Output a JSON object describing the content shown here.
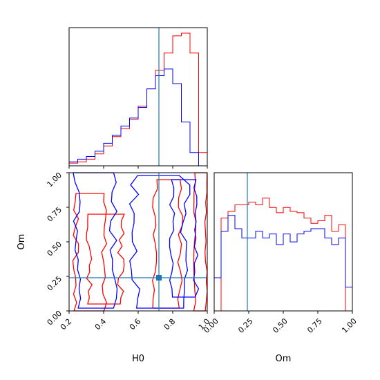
{
  "chart_data": [
    {
      "type": "histogram",
      "panel": "H0 marginal",
      "x_range": [
        0.2,
        1.0
      ],
      "y_ticks_shown": false,
      "truth_value": 0.72,
      "colors": {
        "series_a": "#ff0000",
        "series_b": "#0000ff",
        "truth": "#1f77b4"
      },
      "bin_edges": [
        0.2,
        0.25,
        0.3,
        0.35,
        0.4,
        0.45,
        0.5,
        0.55,
        0.6,
        0.65,
        0.7,
        0.75,
        0.8,
        0.85,
        0.9,
        0.95,
        1.0
      ],
      "series": [
        {
          "color": "#ff0000",
          "values": [
            0.02,
            0.03,
            0.05,
            0.09,
            0.15,
            0.22,
            0.28,
            0.35,
            0.45,
            0.58,
            0.72,
            0.85,
            0.98,
            1.0,
            0.85,
            0.1
          ]
        },
        {
          "color": "#0000ff",
          "values": [
            0.03,
            0.05,
            0.07,
            0.11,
            0.17,
            0.23,
            0.3,
            0.36,
            0.44,
            0.58,
            0.68,
            0.73,
            0.62,
            0.33,
            0.1,
            0.0
          ]
        }
      ]
    },
    {
      "type": "contour",
      "panel": "Om vs H0",
      "xlabel": "H0",
      "ylabel": "Om",
      "xlim": [
        0.2,
        1.0
      ],
      "ylim": [
        0.0,
        1.0
      ],
      "xticks": [
        "0.2",
        "0.4",
        "0.6",
        "0.8",
        "1.0"
      ],
      "yticks": [
        "0.00",
        "0.25",
        "0.50",
        "0.75",
        "1.00"
      ],
      "truth_point": {
        "H0": 0.72,
        "Om": 0.24
      },
      "series": [
        {
          "color": "#ff0000",
          "regions": [
            {
              "h0_min": 0.22,
              "h0_max": 0.42,
              "om_min": 0.0,
              "om_max": 0.85
            },
            {
              "h0_min": 0.3,
              "h0_max": 0.52,
              "om_min": 0.05,
              "om_max": 0.7
            },
            {
              "h0_min": 0.68,
              "h0_max": 0.86,
              "om_min": 0.02,
              "om_max": 0.95
            },
            {
              "h0_min": 0.92,
              "h0_max": 1.0,
              "om_min": 0.0,
              "om_max": 1.0
            }
          ]
        },
        {
          "color": "#0000ff",
          "regions": [
            {
              "h0_min": 0.22,
              "h0_max": 0.48,
              "om_min": 0.02,
              "om_max": 1.0
            },
            {
              "h0_min": 0.55,
              "h0_max": 0.9,
              "om_min": 0.02,
              "om_max": 0.98
            },
            {
              "h0_min": 0.78,
              "h0_max": 0.95,
              "om_min": 0.1,
              "om_max": 0.95
            }
          ]
        }
      ]
    },
    {
      "type": "histogram",
      "panel": "Om marginal",
      "xlabel": "Om",
      "x_range": [
        0.0,
        1.0
      ],
      "xticks": [
        "0.00",
        "0.25",
        "0.50",
        "0.75",
        "1.00"
      ],
      "truth_value": 0.24,
      "bin_edges": [
        0.0,
        0.05,
        0.1,
        0.15,
        0.2,
        0.25,
        0.3,
        0.35,
        0.4,
        0.45,
        0.5,
        0.55,
        0.6,
        0.65,
        0.7,
        0.75,
        0.8,
        0.85,
        0.9,
        0.95,
        1.0
      ],
      "series": [
        {
          "color": "#ff0000",
          "values": [
            0.0,
            0.7,
            0.75,
            0.8,
            0.8,
            0.82,
            0.8,
            0.85,
            0.78,
            0.74,
            0.78,
            0.75,
            0.74,
            0.7,
            0.66,
            0.68,
            0.72,
            0.6,
            0.65,
            0.0
          ]
        },
        {
          "color": "#0000ff",
          "values": [
            0.25,
            0.6,
            0.72,
            0.62,
            0.55,
            0.55,
            0.6,
            0.55,
            0.58,
            0.5,
            0.58,
            0.52,
            0.58,
            0.6,
            0.62,
            0.62,
            0.55,
            0.5,
            0.55,
            0.18
          ]
        }
      ]
    }
  ]
}
